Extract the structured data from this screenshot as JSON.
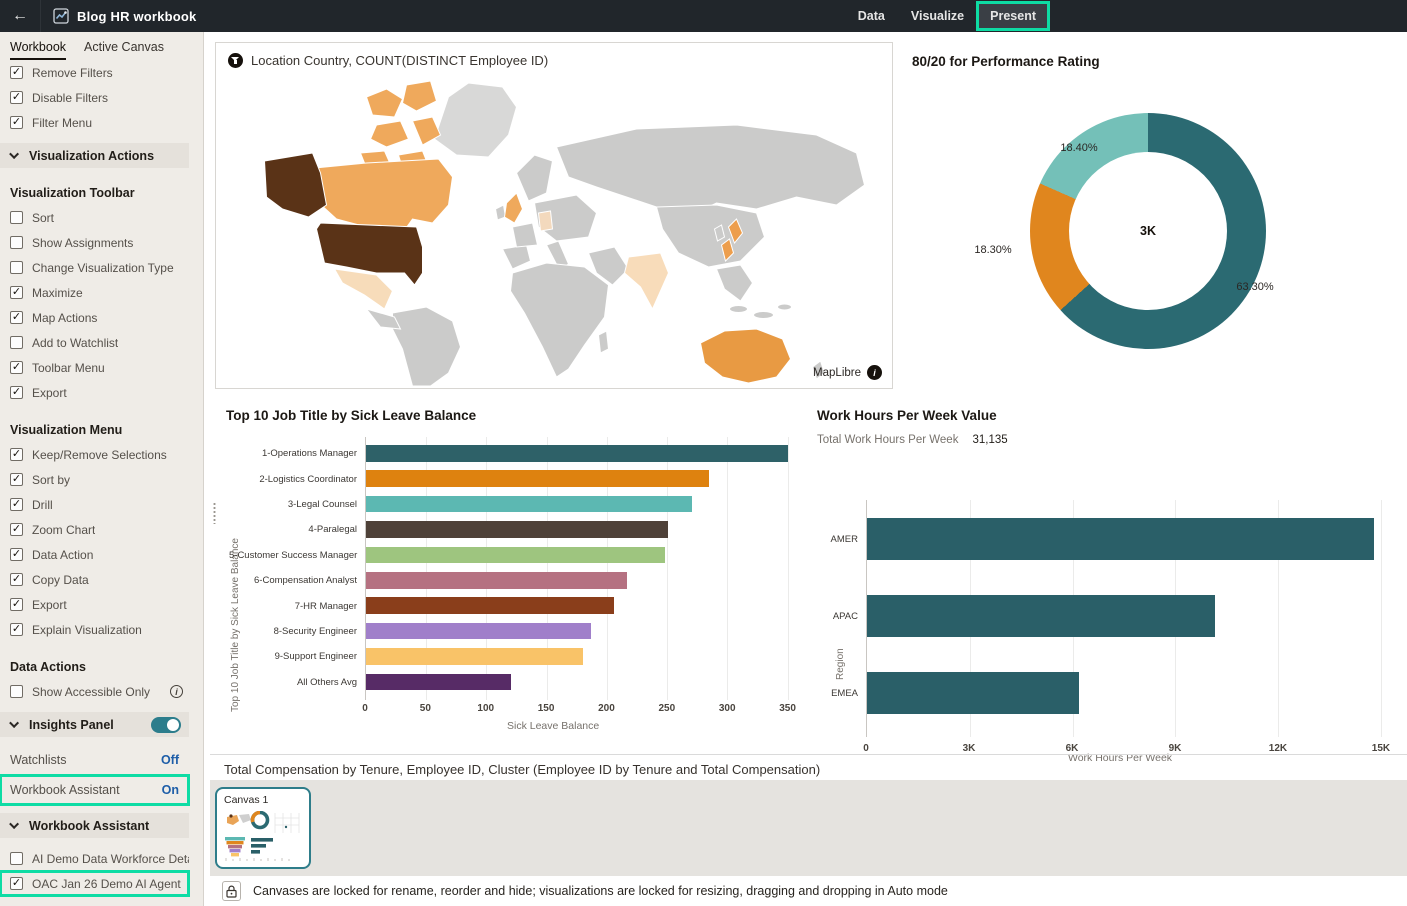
{
  "highlight_color": "#0edca4",
  "topbar": {
    "back_label": "←",
    "title": "Blog HR workbook",
    "nav": [
      {
        "label": "Data",
        "active": false,
        "highlighted": false
      },
      {
        "label": "Visualize",
        "active": false,
        "highlighted": false
      },
      {
        "label": "Present",
        "active": true,
        "highlighted": true
      }
    ]
  },
  "sidebar": {
    "tabs": [
      {
        "label": "Workbook",
        "active": true
      },
      {
        "label": "Active Canvas",
        "active": false
      }
    ],
    "rows": [
      {
        "type": "checkbox",
        "label": "Remove Filters",
        "checked": true
      },
      {
        "type": "checkbox",
        "label": "Disable Filters",
        "checked": true
      },
      {
        "type": "checkbox",
        "label": "Filter Menu",
        "checked": true
      },
      {
        "type": "section",
        "label": "Visualization Actions",
        "toggle": false
      },
      {
        "type": "subheader",
        "label": "Visualization Toolbar"
      },
      {
        "type": "checkbox",
        "label": "Sort",
        "checked": false
      },
      {
        "type": "checkbox",
        "label": "Show Assignments",
        "checked": false
      },
      {
        "type": "checkbox",
        "label": "Change Visualization Type",
        "checked": false
      },
      {
        "type": "checkbox",
        "label": "Maximize",
        "checked": true
      },
      {
        "type": "checkbox",
        "label": "Map Actions",
        "checked": true
      },
      {
        "type": "checkbox",
        "label": "Add to Watchlist",
        "checked": false
      },
      {
        "type": "checkbox",
        "label": "Toolbar Menu",
        "checked": true
      },
      {
        "type": "checkbox",
        "label": "Export",
        "checked": true
      },
      {
        "type": "subheader",
        "label": "Visualization Menu"
      },
      {
        "type": "checkbox",
        "label": "Keep/Remove Selections",
        "checked": true
      },
      {
        "type": "checkbox",
        "label": "Sort by",
        "checked": true
      },
      {
        "type": "checkbox",
        "label": "Drill",
        "checked": true
      },
      {
        "type": "checkbox",
        "label": "Zoom Chart",
        "checked": true
      },
      {
        "type": "checkbox",
        "label": "Data Action",
        "checked": true
      },
      {
        "type": "checkbox",
        "label": "Copy Data",
        "checked": true
      },
      {
        "type": "checkbox",
        "label": "Export",
        "checked": true
      },
      {
        "type": "checkbox",
        "label": "Explain Visualization",
        "checked": true
      },
      {
        "type": "subheader",
        "label": "Data Actions"
      },
      {
        "type": "checkbox",
        "label": "Show Accessible Only",
        "checked": false,
        "info": true
      },
      {
        "type": "section",
        "label": "Insights Panel",
        "toggle": true,
        "toggle_on": true
      },
      {
        "type": "status",
        "label": "Watchlists",
        "value": "Off"
      },
      {
        "type": "status",
        "label": "Workbook Assistant",
        "value": "On",
        "highlighted": true
      },
      {
        "type": "section",
        "label": "Workbook Assistant",
        "toggle": false
      },
      {
        "type": "checkbox",
        "label": "AI Demo Data Workforce Deta...",
        "checked": false
      },
      {
        "type": "checkbox",
        "label": "OAC Jan 26 Demo AI Agent",
        "checked": true,
        "highlighted": true
      }
    ]
  },
  "map": {
    "title": "Location Country, COUNT(DISTINCT Employee ID)",
    "attribution": "MapLibre",
    "country_colors": {
      "usa": "#5a3317",
      "alaska": "#5a3317",
      "canada": "#efa95c",
      "canada-islands": "#efa95c",
      "mexico": "#f7dcba",
      "uk": "#efa95c",
      "germany": "#f3d9bd",
      "india": "#f8dcba",
      "japan": "#ed9e4c",
      "australia": "#e89a43"
    }
  },
  "chart_data": [
    {
      "id": "performance_donut",
      "type": "pie",
      "title": "80/20 for Performance Rating",
      "center_label": "3K",
      "start_angle": "top",
      "direction": "clockwise",
      "slices": [
        {
          "label": "63.30%",
          "value": 63.3,
          "color": "#2b6a72"
        },
        {
          "label": "18.30%",
          "value": 18.3,
          "color": "#e0861e"
        },
        {
          "label": "18.40%",
          "value": 18.4,
          "color": "#74c0b8"
        }
      ]
    },
    {
      "id": "sick_leave_by_job_title",
      "type": "bar",
      "orientation": "horizontal",
      "title": "Top 10 Job Title by Sick Leave Balance",
      "xlabel": "Sick Leave Balance",
      "ylabel": "Top 10 Job Title by Sick Leave Balance",
      "xlim": [
        0,
        352
      ],
      "xticks": [
        0,
        50,
        100,
        150,
        200,
        250,
        300,
        350
      ],
      "grid": true,
      "categories": [
        "1-Operations Manager",
        "2-Logistics Coordinator",
        "3-Legal Counsel",
        "4-Paralegal",
        "5-Customer Success Manager",
        "6-Compensation Analyst",
        "7-HR Manager",
        "8-Security Engineer",
        "9-Support Engineer",
        "All Others Avg"
      ],
      "values": [
        350,
        285,
        271,
        251,
        248,
        217,
        206,
        187,
        180,
        120
      ],
      "colors": [
        "#2e6168",
        "#de820f",
        "#5cb8b2",
        "#4e4138",
        "#9ec57f",
        "#b57181",
        "#8a3e1b",
        "#a07fca",
        "#f9c368",
        "#572b66"
      ]
    },
    {
      "id": "work_hours_by_region",
      "type": "bar",
      "orientation": "horizontal",
      "title": "Work Hours Per Week Value",
      "kpi_label": "Total Work Hours Per Week",
      "kpi_value": "31,135",
      "xlabel": "Work Hours Per Week",
      "ylabel": "Region",
      "xlim": [
        0,
        15525
      ],
      "xticks": [
        {
          "v": 0,
          "label": "0"
        },
        {
          "v": 3000,
          "label": "3K"
        },
        {
          "v": 6000,
          "label": "6K"
        },
        {
          "v": 9000,
          "label": "9K"
        },
        {
          "v": 12000,
          "label": "12K"
        },
        {
          "v": 15000,
          "label": "15K"
        }
      ],
      "grid": true,
      "categories": [
        "AMER",
        "APAC",
        "EMEA"
      ],
      "values": [
        14800,
        10150,
        6200
      ],
      "color": "#2a5f68"
    }
  ],
  "bottom": {
    "viz_title": "Total Compensation by Tenure, Employee ID, Cluster (Employee ID by Tenure and Total Compensation)",
    "canvas_label": "Canvas 1",
    "lock_message": "Canvases are locked for rename, reorder and hide; visualizations are locked for resizing, dragging and dropping in Auto mode"
  }
}
